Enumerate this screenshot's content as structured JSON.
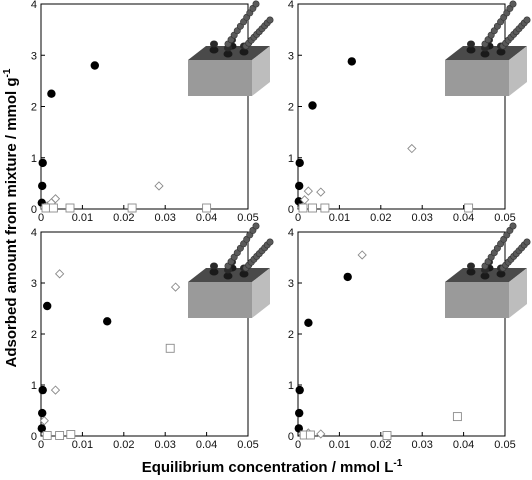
{
  "figure": {
    "ylabel_main": "Adsorbed amount from mixture / mmol g",
    "ylabel_sup": "-1",
    "xlabel_main": "Equilibrium concentration / mmol L",
    "xlabel_sup": "-1"
  },
  "colors": {
    "filled_circle": "#000000",
    "open_marker": "#8a8a8a",
    "box_top": "#4a4a4a",
    "box_front": "#9a9a9a",
    "box_side": "#bdbdbd",
    "chain": "#5a5a5a"
  },
  "icons": [
    "surface-with-grafted-chains-icon"
  ],
  "chart_data": [
    {
      "type": "scatter",
      "panel": "top-left",
      "xlim": [
        0,
        0.05
      ],
      "ylim": [
        0,
        4
      ],
      "x_ticks": [
        "0",
        "0.01",
        "0.02",
        "0.03",
        "0.04",
        "0.05"
      ],
      "y_ticks": [
        "0",
        "1",
        "2",
        "3",
        "4"
      ],
      "grid": false,
      "series": [
        {
          "marker": "filled-circle",
          "points": [
            [
              0.0002,
              0.12
            ],
            [
              0.0003,
              0.45
            ],
            [
              0.0004,
              0.9
            ],
            [
              0.0025,
              2.25
            ],
            [
              0.013,
              2.8
            ]
          ]
        },
        {
          "marker": "open-diamond",
          "points": [
            [
              0.0008,
              0.03
            ],
            [
              0.0015,
              0.06
            ],
            [
              0.0025,
              0.12
            ],
            [
              0.0035,
              0.2
            ],
            [
              0.0285,
              0.45
            ]
          ]
        },
        {
          "marker": "open-square",
          "points": [
            [
              0.0012,
              0.02
            ],
            [
              0.003,
              0.02
            ],
            [
              0.007,
              0.02
            ],
            [
              0.022,
              0.02
            ],
            [
              0.04,
              0.02
            ]
          ]
        }
      ]
    },
    {
      "type": "scatter",
      "panel": "top-right",
      "xlim": [
        0,
        0.05
      ],
      "ylim": [
        0,
        4
      ],
      "x_ticks": [
        "0",
        "0.01",
        "0.02",
        "0.03",
        "0.04",
        "0.05"
      ],
      "y_ticks": [
        "0",
        "1",
        "2",
        "3",
        "4"
      ],
      "grid": false,
      "series": [
        {
          "marker": "filled-circle",
          "points": [
            [
              0.0002,
              0.15
            ],
            [
              0.0003,
              0.45
            ],
            [
              0.0004,
              0.9
            ],
            [
              0.0035,
              2.02
            ],
            [
              0.013,
              2.88
            ]
          ]
        },
        {
          "marker": "open-diamond",
          "points": [
            [
              0.0009,
              0.03
            ],
            [
              0.0016,
              0.18
            ],
            [
              0.0025,
              0.35
            ],
            [
              0.0055,
              0.33
            ],
            [
              0.0275,
              1.18
            ]
          ]
        },
        {
          "marker": "open-square",
          "points": [
            [
              0.0012,
              0.02
            ],
            [
              0.0035,
              0.02
            ],
            [
              0.0065,
              0.02
            ],
            [
              0.0412,
              0.02
            ]
          ]
        }
      ]
    },
    {
      "type": "scatter",
      "panel": "bottom-left",
      "xlim": [
        0,
        0.05
      ],
      "ylim": [
        0,
        4
      ],
      "x_ticks": [
        "0",
        "0.01",
        "0.02",
        "0.03",
        "0.04",
        "0.05"
      ],
      "y_ticks": [
        "0",
        "1",
        "2",
        "3",
        "4"
      ],
      "grid": false,
      "series": [
        {
          "marker": "filled-circle",
          "points": [
            [
              0.0002,
              0.15
            ],
            [
              0.0003,
              0.45
            ],
            [
              0.0004,
              0.9
            ],
            [
              0.0015,
              2.55
            ],
            [
              0.016,
              2.25
            ]
          ]
        },
        {
          "marker": "open-diamond",
          "points": [
            [
              0.0008,
              0.3
            ],
            [
              0.0035,
              0.9
            ],
            [
              0.0045,
              3.18
            ],
            [
              0.0325,
              2.92
            ]
          ]
        },
        {
          "marker": "open-square",
          "points": [
            [
              0.0015,
              0.01
            ],
            [
              0.0045,
              0.01
            ],
            [
              0.0072,
              0.03
            ],
            [
              0.0312,
              1.72
            ]
          ]
        }
      ]
    },
    {
      "type": "scatter",
      "panel": "bottom-right",
      "xlim": [
        0,
        0.05
      ],
      "ylim": [
        0,
        4
      ],
      "x_ticks": [
        "0",
        "0.01",
        "0.02",
        "0.03",
        "0.04",
        "0.05"
      ],
      "y_ticks": [
        "0",
        "1",
        "2",
        "3",
        "4"
      ],
      "grid": false,
      "series": [
        {
          "marker": "filled-circle",
          "points": [
            [
              0.0002,
              0.15
            ],
            [
              0.0003,
              0.45
            ],
            [
              0.0004,
              0.9
            ],
            [
              0.0025,
              2.22
            ],
            [
              0.012,
              3.12
            ]
          ]
        },
        {
          "marker": "open-diamond",
          "points": [
            [
              0.0012,
              0.02
            ],
            [
              0.0025,
              0.06
            ],
            [
              0.0055,
              0.04
            ],
            [
              0.0155,
              3.55
            ]
          ]
        },
        {
          "marker": "open-square",
          "points": [
            [
              0.0015,
              0.02
            ],
            [
              0.003,
              0.02
            ],
            [
              0.0215,
              0.01
            ],
            [
              0.0385,
              0.38
            ]
          ]
        }
      ]
    }
  ]
}
